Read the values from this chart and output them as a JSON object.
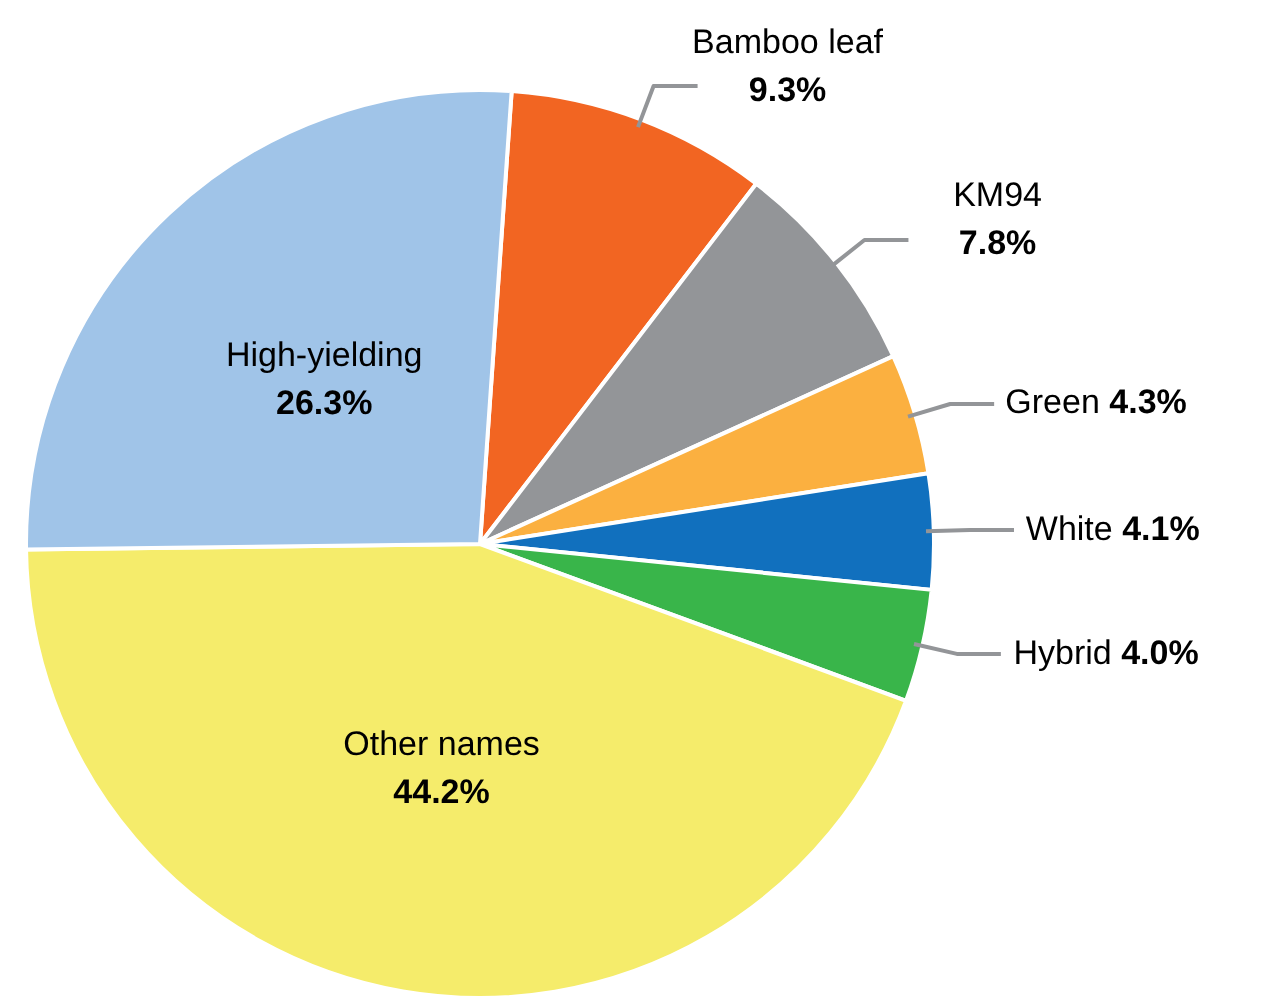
{
  "chart_data": {
    "type": "pie",
    "categories": [
      "Bamboo leaf",
      "KM94",
      "Green",
      "White",
      "Hybrid",
      "Other names",
      "High-yielding"
    ],
    "values": [
      9.3,
      7.8,
      4.3,
      4.1,
      4.0,
      44.2,
      26.3
    ],
    "colors": [
      "#f26522",
      "#939598",
      "#fbb040",
      "#1170be",
      "#39b54a",
      "#f5ec6b",
      "#a0c4e8"
    ],
    "value_labels": [
      "9.3%",
      "7.8%",
      "4.3%",
      "4.1%",
      "4.0%",
      "44.2%",
      "26.3%"
    ],
    "legend": false
  }
}
